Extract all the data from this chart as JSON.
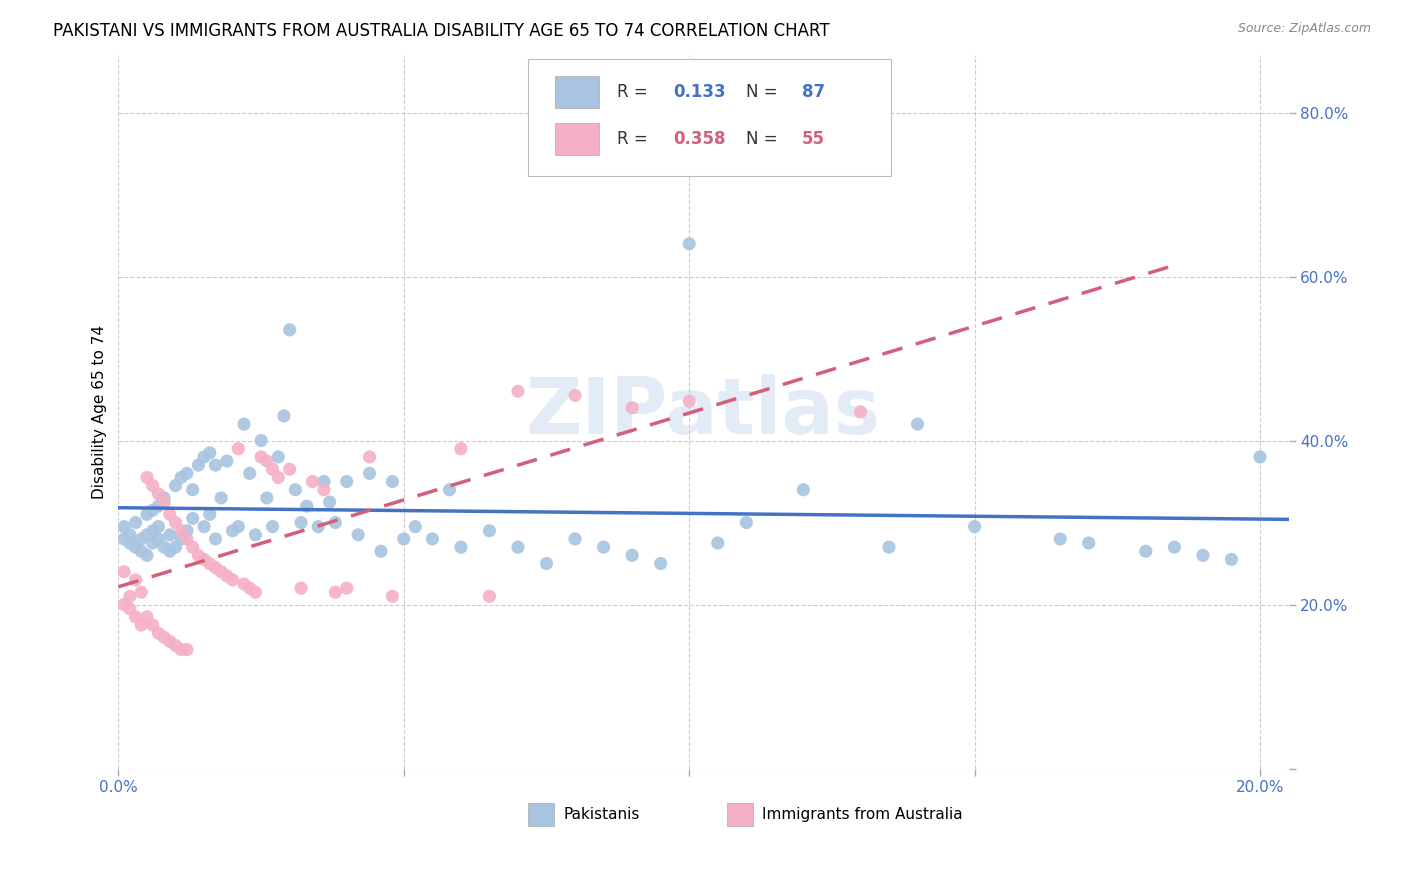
{
  "title": "PAKISTANI VS IMMIGRANTS FROM AUSTRALIA DISABILITY AGE 65 TO 74 CORRELATION CHART",
  "source": "Source: ZipAtlas.com",
  "ylabel": "Disability Age 65 to 74",
  "xlim": [
    0.0,
    0.205
  ],
  "ylim": [
    0.0,
    0.87
  ],
  "x_ticks": [
    0.0,
    0.05,
    0.1,
    0.15,
    0.2
  ],
  "x_tick_labels": [
    "0.0%",
    "",
    "",
    "",
    "20.0%"
  ],
  "y_ticks": [
    0.0,
    0.2,
    0.4,
    0.6,
    0.8
  ],
  "y_tick_labels": [
    "",
    "20.0%",
    "40.0%",
    "60.0%",
    "80.0%"
  ],
  "blue_R": 0.133,
  "blue_N": 87,
  "pink_R": 0.358,
  "pink_N": 55,
  "blue_color": "#a8c4e0",
  "pink_color": "#f4b0c4",
  "blue_line_color": "#4472c4",
  "pink_line_color": "#d45f7a",
  "watermark": "ZIPatlas",
  "title_fontsize": 12,
  "axis_label_fontsize": 11,
  "tick_fontsize": 11,
  "background_color": "#ffffff",
  "grid_color": "#cccccc",
  "blue_x": [
    0.001,
    0.001,
    0.002,
    0.002,
    0.003,
    0.003,
    0.004,
    0.004,
    0.005,
    0.005,
    0.005,
    0.006,
    0.006,
    0.006,
    0.007,
    0.007,
    0.007,
    0.008,
    0.008,
    0.009,
    0.009,
    0.01,
    0.01,
    0.011,
    0.011,
    0.012,
    0.012,
    0.013,
    0.013,
    0.014,
    0.015,
    0.015,
    0.016,
    0.016,
    0.017,
    0.017,
    0.018,
    0.019,
    0.02,
    0.021,
    0.022,
    0.023,
    0.024,
    0.025,
    0.026,
    0.027,
    0.028,
    0.029,
    0.03,
    0.031,
    0.032,
    0.033,
    0.035,
    0.036,
    0.037,
    0.038,
    0.04,
    0.042,
    0.044,
    0.046,
    0.048,
    0.05,
    0.052,
    0.055,
    0.058,
    0.06,
    0.065,
    0.07,
    0.075,
    0.08,
    0.085,
    0.09,
    0.095,
    0.1,
    0.105,
    0.11,
    0.12,
    0.135,
    0.14,
    0.15,
    0.165,
    0.17,
    0.18,
    0.185,
    0.19,
    0.195,
    0.2
  ],
  "blue_y": [
    0.28,
    0.295,
    0.275,
    0.285,
    0.27,
    0.3,
    0.265,
    0.28,
    0.26,
    0.31,
    0.285,
    0.29,
    0.275,
    0.315,
    0.32,
    0.28,
    0.295,
    0.27,
    0.33,
    0.285,
    0.265,
    0.345,
    0.27,
    0.355,
    0.28,
    0.36,
    0.29,
    0.34,
    0.305,
    0.37,
    0.38,
    0.295,
    0.385,
    0.31,
    0.37,
    0.28,
    0.33,
    0.375,
    0.29,
    0.295,
    0.42,
    0.36,
    0.285,
    0.4,
    0.33,
    0.295,
    0.38,
    0.43,
    0.535,
    0.34,
    0.3,
    0.32,
    0.295,
    0.35,
    0.325,
    0.3,
    0.35,
    0.285,
    0.36,
    0.265,
    0.35,
    0.28,
    0.295,
    0.28,
    0.34,
    0.27,
    0.29,
    0.27,
    0.25,
    0.28,
    0.27,
    0.26,
    0.25,
    0.64,
    0.275,
    0.3,
    0.34,
    0.27,
    0.42,
    0.295,
    0.28,
    0.275,
    0.265,
    0.27,
    0.26,
    0.255,
    0.38
  ],
  "pink_x": [
    0.001,
    0.001,
    0.002,
    0.002,
    0.003,
    0.003,
    0.004,
    0.004,
    0.005,
    0.005,
    0.006,
    0.006,
    0.007,
    0.007,
    0.008,
    0.008,
    0.009,
    0.009,
    0.01,
    0.01,
    0.011,
    0.011,
    0.012,
    0.012,
    0.013,
    0.014,
    0.015,
    0.016,
    0.017,
    0.018,
    0.019,
    0.02,
    0.021,
    0.022,
    0.023,
    0.024,
    0.025,
    0.026,
    0.027,
    0.028,
    0.03,
    0.032,
    0.034,
    0.036,
    0.038,
    0.04,
    0.044,
    0.048,
    0.06,
    0.065,
    0.07,
    0.08,
    0.09,
    0.1,
    0.13
  ],
  "pink_y": [
    0.2,
    0.24,
    0.21,
    0.195,
    0.23,
    0.185,
    0.215,
    0.175,
    0.355,
    0.185,
    0.345,
    0.175,
    0.335,
    0.165,
    0.325,
    0.16,
    0.31,
    0.155,
    0.3,
    0.15,
    0.29,
    0.145,
    0.28,
    0.145,
    0.27,
    0.26,
    0.255,
    0.25,
    0.245,
    0.24,
    0.235,
    0.23,
    0.39,
    0.225,
    0.22,
    0.215,
    0.38,
    0.375,
    0.365,
    0.355,
    0.365,
    0.22,
    0.35,
    0.34,
    0.215,
    0.22,
    0.38,
    0.21,
    0.39,
    0.21,
    0.46,
    0.455,
    0.44,
    0.448,
    0.435
  ]
}
